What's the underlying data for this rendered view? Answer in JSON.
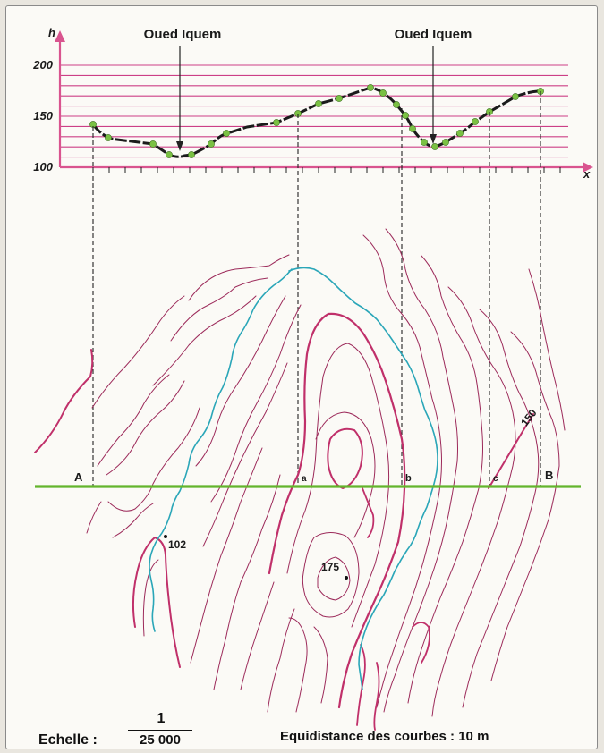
{
  "profile": {
    "y_axis_label": "h",
    "x_axis_label": "x",
    "y_ticks": [
      "200",
      "150",
      "100"
    ],
    "river_labels": [
      "Oued Iquem",
      "Oued Iquem"
    ]
  },
  "map": {
    "section_points": [
      "A",
      "a",
      "b",
      "c",
      "B"
    ],
    "contour_label": "150",
    "spot_heights": [
      "102",
      "175"
    ]
  },
  "footer": {
    "scale_label": "Echelle :",
    "scale_numerator": "1",
    "scale_denominator": "25 000",
    "contour_interval": "Equidistance des courbes : 10 m"
  },
  "colors": {
    "contour": "#9c2a5a",
    "contour_thick": "#c0306a",
    "river": "#2aa6b8",
    "section_line": "#63b52c",
    "profile_grid": "#cc3f86",
    "profile_points": "#7ac143",
    "axis_arrow": "#d9548f"
  }
}
